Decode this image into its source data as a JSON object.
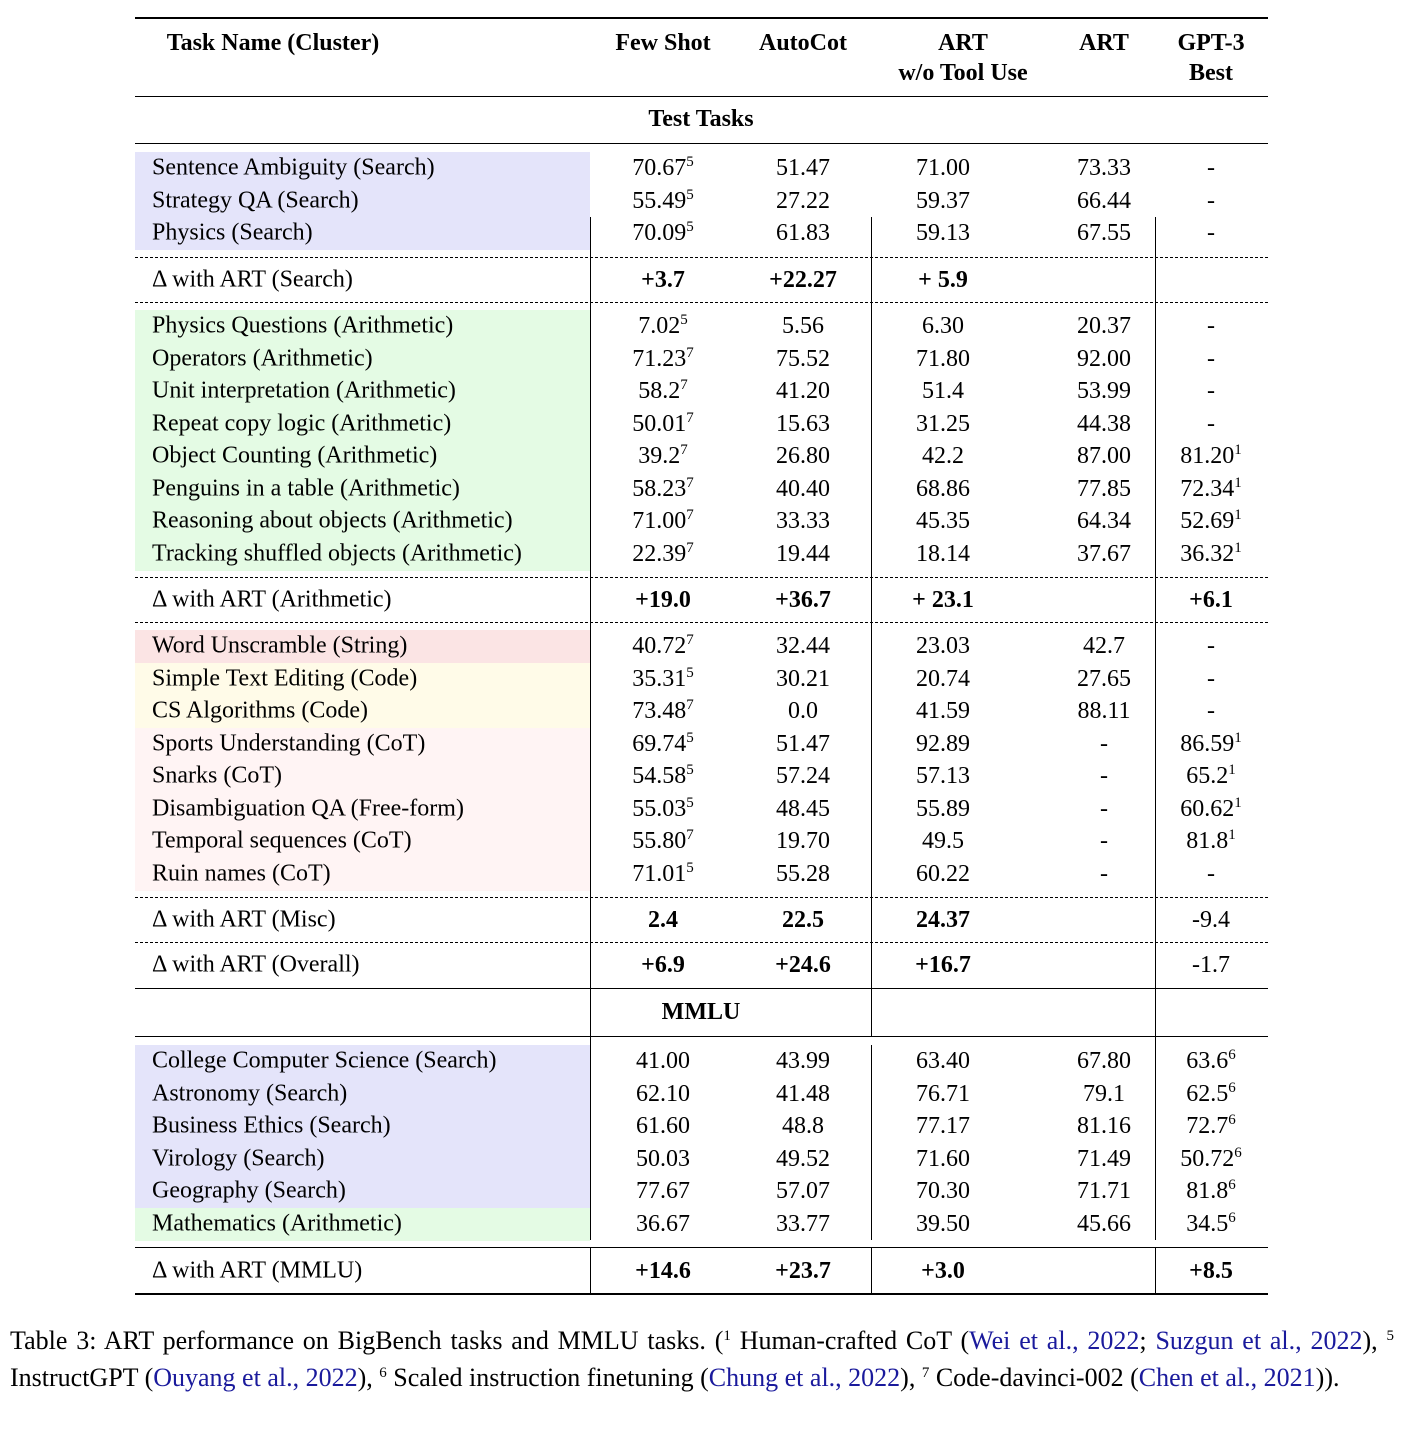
{
  "headers": {
    "task": "Task Name (Cluster)",
    "few_shot": "Few Shot",
    "autocot": "AutoCot",
    "art_wo_1": "ART",
    "art_wo_2": "w/o Tool Use",
    "art": "ART",
    "gpt3_1": "GPT-3",
    "gpt3_2": "Best"
  },
  "sections": {
    "test": "Test Tasks",
    "mmlu": "MMLU"
  },
  "colors": {
    "search": "#e4e4fa",
    "arithmetic": "#e4fbe4",
    "string": "#fbe4e4",
    "code": "#fffbe8",
    "cot": "#fff4f4",
    "link": "#1a1a9c"
  },
  "groups": [
    {
      "rows": [
        {
          "task": "Sentence Ambiguity (Search)",
          "cat": "search",
          "cells": [
            {
              "v": "70.67",
              "s": "5"
            },
            {
              "v": "51.47"
            },
            {
              "v": "71.00"
            },
            {
              "v": "73.33"
            },
            {
              "v": "-"
            }
          ]
        },
        {
          "task": "Strategy QA (Search)",
          "cat": "search",
          "cells": [
            {
              "v": "55.49",
              "s": "5"
            },
            {
              "v": "27.22"
            },
            {
              "v": "59.37"
            },
            {
              "v": "66.44"
            },
            {
              "v": "-"
            }
          ]
        },
        {
          "task": "Physics (Search)",
          "cat": "search",
          "cells": [
            {
              "v": "70.09",
              "s": "5"
            },
            {
              "v": "61.83"
            },
            {
              "v": "59.13"
            },
            {
              "v": "67.55"
            },
            {
              "v": "-"
            }
          ]
        }
      ],
      "delta": {
        "label": "Δ with ART (Search)",
        "cells": [
          {
            "v": "+3.7",
            "b": true
          },
          {
            "v": "+22.27",
            "b": true
          },
          {
            "v": "+ 5.9",
            "b": true
          },
          {
            "v": ""
          },
          {
            "v": ""
          }
        ]
      }
    },
    {
      "rows": [
        {
          "task": "Physics Questions (Arithmetic)",
          "cat": "arithmetic",
          "cells": [
            {
              "v": "7.02",
              "s": "5"
            },
            {
              "v": "5.56"
            },
            {
              "v": "6.30"
            },
            {
              "v": "20.37"
            },
            {
              "v": "-"
            }
          ]
        },
        {
          "task": "Operators (Arithmetic)",
          "cat": "arithmetic",
          "cells": [
            {
              "v": "71.23",
              "s": "7"
            },
            {
              "v": "75.52"
            },
            {
              "v": "71.80"
            },
            {
              "v": "92.00"
            },
            {
              "v": "-"
            }
          ]
        },
        {
          "task": "Unit interpretation (Arithmetic)",
          "cat": "arithmetic",
          "cells": [
            {
              "v": "58.2",
              "s": "7"
            },
            {
              "v": "41.20"
            },
            {
              "v": "51.4"
            },
            {
              "v": "53.99"
            },
            {
              "v": "-"
            }
          ]
        },
        {
          "task": "Repeat copy logic (Arithmetic)",
          "cat": "arithmetic",
          "cells": [
            {
              "v": "50.01",
              "s": "7"
            },
            {
              "v": "15.63"
            },
            {
              "v": "31.25"
            },
            {
              "v": "44.38"
            },
            {
              "v": "-"
            }
          ]
        },
        {
          "task": "Object Counting (Arithmetic)",
          "cat": "arithmetic",
          "cells": [
            {
              "v": "39.2",
              "s": "7"
            },
            {
              "v": "26.80"
            },
            {
              "v": "42.2"
            },
            {
              "v": "87.00"
            },
            {
              "v": "81.20",
              "s": "1"
            }
          ]
        },
        {
          "task": "Penguins in a table (Arithmetic)",
          "cat": "arithmetic",
          "cells": [
            {
              "v": "58.23",
              "s": "7"
            },
            {
              "v": "40.40"
            },
            {
              "v": "68.86"
            },
            {
              "v": "77.85"
            },
            {
              "v": "72.34",
              "s": "1"
            }
          ]
        },
        {
          "task": "Reasoning about objects (Arithmetic)",
          "cat": "arithmetic",
          "cells": [
            {
              "v": "71.00",
              "s": "7"
            },
            {
              "v": "33.33"
            },
            {
              "v": "45.35"
            },
            {
              "v": "64.34"
            },
            {
              "v": "52.69",
              "s": "1"
            }
          ]
        },
        {
          "task": "Tracking shuffled objects (Arithmetic)",
          "cat": "arithmetic",
          "cells": [
            {
              "v": "22.39",
              "s": "7"
            },
            {
              "v": "19.44"
            },
            {
              "v": "18.14"
            },
            {
              "v": "37.67"
            },
            {
              "v": "36.32",
              "s": "1"
            }
          ]
        }
      ],
      "delta": {
        "label": "Δ with ART (Arithmetic)",
        "cells": [
          {
            "v": "+19.0",
            "b": true
          },
          {
            "v": "+36.7",
            "b": true
          },
          {
            "v": "+ 23.1",
            "b": true
          },
          {
            "v": ""
          },
          {
            "v": "+6.1",
            "b": true
          }
        ]
      }
    },
    {
      "rows": [
        {
          "task": "Word Unscramble (String)",
          "cat": "string",
          "cells": [
            {
              "v": "40.72",
              "s": "7"
            },
            {
              "v": "32.44"
            },
            {
              "v": "23.03"
            },
            {
              "v": "42.7"
            },
            {
              "v": "-"
            }
          ]
        },
        {
          "task": "Simple Text Editing (Code)",
          "cat": "code",
          "cells": [
            {
              "v": "35.31",
              "s": "5"
            },
            {
              "v": "30.21"
            },
            {
              "v": "20.74"
            },
            {
              "v": "27.65"
            },
            {
              "v": "-"
            }
          ]
        },
        {
          "task": "CS Algorithms (Code)",
          "cat": "code",
          "cells": [
            {
              "v": "73.48",
              "s": "7"
            },
            {
              "v": "0.0"
            },
            {
              "v": "41.59"
            },
            {
              "v": "88.11"
            },
            {
              "v": "-"
            }
          ]
        },
        {
          "task": "Sports Understanding (CoT)",
          "cat": "cot",
          "cells": [
            {
              "v": "69.74",
              "s": "5"
            },
            {
              "v": "51.47"
            },
            {
              "v": "92.89"
            },
            {
              "v": "-"
            },
            {
              "v": "86.59",
              "s": "1"
            }
          ]
        },
        {
          "task": "Snarks (CoT)",
          "cat": "cot",
          "cells": [
            {
              "v": "54.58",
              "s": "5"
            },
            {
              "v": "57.24"
            },
            {
              "v": "57.13"
            },
            {
              "v": "-"
            },
            {
              "v": "65.2",
              "s": "1"
            }
          ]
        },
        {
          "task": "Disambiguation QA (Free-form)",
          "cat": "cot",
          "cells": [
            {
              "v": "55.03",
              "s": "5"
            },
            {
              "v": "48.45"
            },
            {
              "v": "55.89"
            },
            {
              "v": "-"
            },
            {
              "v": "60.62",
              "s": "1"
            }
          ]
        },
        {
          "task": "Temporal sequences (CoT)",
          "cat": "cot",
          "cells": [
            {
              "v": "55.80",
              "s": "7"
            },
            {
              "v": "19.70"
            },
            {
              "v": "49.5"
            },
            {
              "v": "-"
            },
            {
              "v": "81.8",
              "s": "1"
            }
          ]
        },
        {
          "task": "Ruin names (CoT)",
          "cat": "cot",
          "cells": [
            {
              "v": "71.01",
              "s": "5"
            },
            {
              "v": "55.28"
            },
            {
              "v": "60.22"
            },
            {
              "v": "-"
            },
            {
              "v": "-"
            }
          ]
        }
      ],
      "delta": {
        "label": "Δ with ART (Misc)",
        "cells": [
          {
            "v": "2.4",
            "b": true
          },
          {
            "v": "22.5",
            "b": true
          },
          {
            "v": "24.37",
            "b": true
          },
          {
            "v": ""
          },
          {
            "v": "-9.4"
          }
        ]
      },
      "delta2": {
        "label": "Δ with ART (Overall)",
        "cells": [
          {
            "v": "+6.9",
            "b": true
          },
          {
            "v": "+24.6",
            "b": true
          },
          {
            "v": "+16.7",
            "b": true
          },
          {
            "v": ""
          },
          {
            "v": "-1.7"
          }
        ]
      }
    },
    {
      "rows": [
        {
          "task": "College Computer Science (Search)",
          "cat": "search",
          "cells": [
            {
              "v": "41.00"
            },
            {
              "v": "43.99"
            },
            {
              "v": "63.40"
            },
            {
              "v": "67.80"
            },
            {
              "v": "63.6",
              "s": "6"
            }
          ]
        },
        {
          "task": "Astronomy (Search)",
          "cat": "search",
          "cells": [
            {
              "v": "62.10"
            },
            {
              "v": "41.48"
            },
            {
              "v": "76.71"
            },
            {
              "v": "79.1"
            },
            {
              "v": "62.5",
              "s": "6"
            }
          ]
        },
        {
          "task": "Business Ethics (Search)",
          "cat": "search",
          "cells": [
            {
              "v": "61.60"
            },
            {
              "v": "48.8"
            },
            {
              "v": "77.17"
            },
            {
              "v": "81.16"
            },
            {
              "v": "72.7",
              "s": "6"
            }
          ]
        },
        {
          "task": "Virology (Search)",
          "cat": "search",
          "cells": [
            {
              "v": "50.03"
            },
            {
              "v": "49.52"
            },
            {
              "v": "71.60"
            },
            {
              "v": "71.49"
            },
            {
              "v": "50.72",
              "s": "6"
            }
          ]
        },
        {
          "task": "Geography (Search)",
          "cat": "search",
          "cells": [
            {
              "v": "77.67"
            },
            {
              "v": "57.07"
            },
            {
              "v": "70.30"
            },
            {
              "v": "71.71"
            },
            {
              "v": "81.8",
              "s": "6"
            }
          ]
        },
        {
          "task": "Mathematics (Arithmetic)",
          "cat": "arithmetic",
          "cells": [
            {
              "v": "36.67"
            },
            {
              "v": "33.77"
            },
            {
              "v": "39.50"
            },
            {
              "v": "45.66"
            },
            {
              "v": "34.5",
              "s": "6"
            }
          ]
        }
      ],
      "delta": {
        "label": "Δ with ART (MMLU)",
        "cells": [
          {
            "v": "+14.6",
            "b": true
          },
          {
            "v": "+23.7",
            "b": true
          },
          {
            "v": "+3.0",
            "b": true
          },
          {
            "v": ""
          },
          {
            "v": "+8.5",
            "b": true
          }
        ]
      }
    }
  ],
  "caption": {
    "t1": "Table 3: ART performance on BigBench tasks and MMLU tasks. (",
    "s1": "1",
    "t2": " Human-crafted CoT (",
    "l1": "Wei et al., 2022",
    "t3": "; ",
    "l2": "Suzgun et al., 2022",
    "t4": "), ",
    "s5": "5",
    "t5": " InstructGPT (",
    "l3": "Ouyang et al., 2022",
    "t6": "), ",
    "s6": "6",
    "t7": " Scaled instruction finetuning (",
    "l4": "Chung et al., 2022",
    "t8": "), ",
    "s7": "7",
    "t9": " Code-davinci-002 (",
    "l5": "Chen et al., 2021",
    "t10": "))."
  }
}
